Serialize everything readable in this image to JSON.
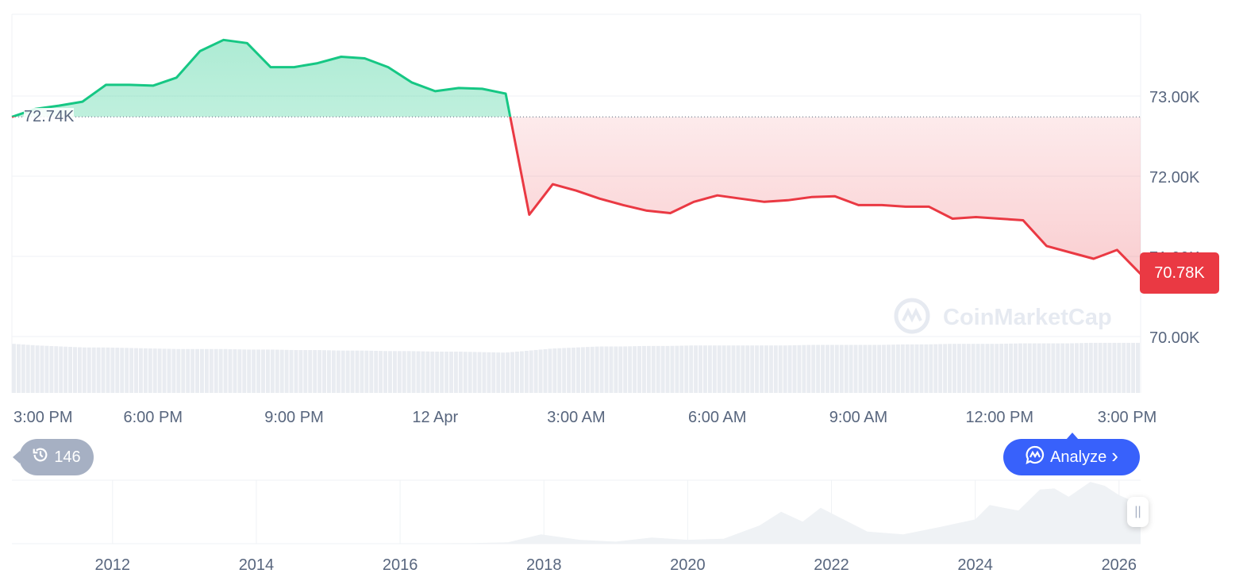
{
  "chart_data": {
    "type": "area",
    "title": "",
    "time_start": "11 Apr 3:00 PM",
    "time_end": "12 Apr 3:00 PM",
    "interval_minutes": 30,
    "values": [
      72.74,
      72.84,
      72.88,
      72.93,
      73.14,
      73.14,
      73.13,
      73.23,
      73.56,
      73.7,
      73.66,
      73.36,
      73.36,
      73.41,
      73.49,
      73.47,
      73.36,
      73.17,
      73.06,
      73.1,
      73.09,
      73.03,
      71.52,
      71.9,
      71.82,
      71.72,
      71.64,
      71.57,
      71.54,
      71.68,
      71.76,
      71.72,
      71.68,
      71.7,
      71.74,
      71.75,
      71.64,
      71.64,
      71.62,
      71.62,
      71.47,
      71.49,
      71.47,
      71.45,
      71.13,
      71.05,
      70.97,
      71.08,
      70.78
    ],
    "value_unit": "K USD",
    "baseline": 72.74,
    "baseline_label": "72.74K",
    "current_label": "70.78K",
    "ylim": [
      69.95,
      74.02
    ],
    "y_ticks": [
      {
        "v": 73,
        "label": "73.00K"
      },
      {
        "v": 72,
        "label": "72.00K"
      },
      {
        "v": 71,
        "label": "71.00K"
      },
      {
        "v": 70,
        "label": "70.00K"
      }
    ],
    "x_ticks": [
      {
        "h": 0,
        "label": "3:00 PM"
      },
      {
        "h": 3,
        "label": "6:00 PM"
      },
      {
        "h": 6,
        "label": "9:00 PM"
      },
      {
        "h": 9,
        "label": "12 Apr"
      },
      {
        "h": 12,
        "label": "3:00 AM"
      },
      {
        "h": 15,
        "label": "6:00 AM"
      },
      {
        "h": 18,
        "label": "9:00 AM"
      },
      {
        "h": 21,
        "label": "12:00 PM"
      },
      {
        "h": 24,
        "label": "3:00 PM"
      }
    ],
    "grid": true,
    "colors": {
      "up": "#16c784",
      "down": "#ea3943",
      "volume": "#e9ecf1",
      "navigator": "#eff2f5"
    },
    "volume_relative": [
      0.95,
      0.92,
      0.9,
      0.88,
      0.88,
      0.87,
      0.86,
      0.85,
      0.85,
      0.85,
      0.84,
      0.84,
      0.83,
      0.83,
      0.82,
      0.82,
      0.81,
      0.81,
      0.8,
      0.8,
      0.79,
      0.78,
      0.82,
      0.86,
      0.88,
      0.9,
      0.9,
      0.91,
      0.91,
      0.92,
      0.92,
      0.92,
      0.92,
      0.92,
      0.93,
      0.93,
      0.93,
      0.93,
      0.94,
      0.94,
      0.95,
      0.95,
      0.95,
      0.96,
      0.96,
      0.96,
      0.97,
      0.97,
      0.97
    ],
    "navigator": {
      "years": [
        2010.6,
        2011,
        2012,
        2013,
        2014,
        2015,
        2016,
        2017,
        2017.5,
        2017.96,
        2018.5,
        2019,
        2019.5,
        2020,
        2020.5,
        2021,
        2021.3,
        2021.6,
        2021.85,
        2022.5,
        2023,
        2023.5,
        2024,
        2024.2,
        2024.6,
        2024.9,
        2025.1,
        2025.3,
        2025.6,
        2025.8,
        2026.0,
        2026.3
      ],
      "values_k": [
        0,
        0,
        0,
        0.5,
        0.6,
        0.3,
        0.4,
        1,
        2.5,
        17,
        7,
        3.7,
        11,
        7,
        9,
        33,
        58,
        40,
        65,
        22,
        17,
        30,
        44,
        70,
        60,
        98,
        100,
        85,
        112,
        105,
        88,
        71
      ],
      "x_ticks": [
        "2012",
        "2014",
        "2016",
        "2018",
        "2020",
        "2022",
        "2024",
        "2026"
      ],
      "range": [
        2010.6,
        2026.3
      ]
    }
  },
  "watermark": "CoinMarketCap",
  "history_badge": {
    "icon": "history-icon",
    "count": "146"
  },
  "analyze_button": {
    "label": "Analyze",
    "icon": "cmc-ai-icon",
    "chevron": "›"
  },
  "handle_glyph": "||"
}
